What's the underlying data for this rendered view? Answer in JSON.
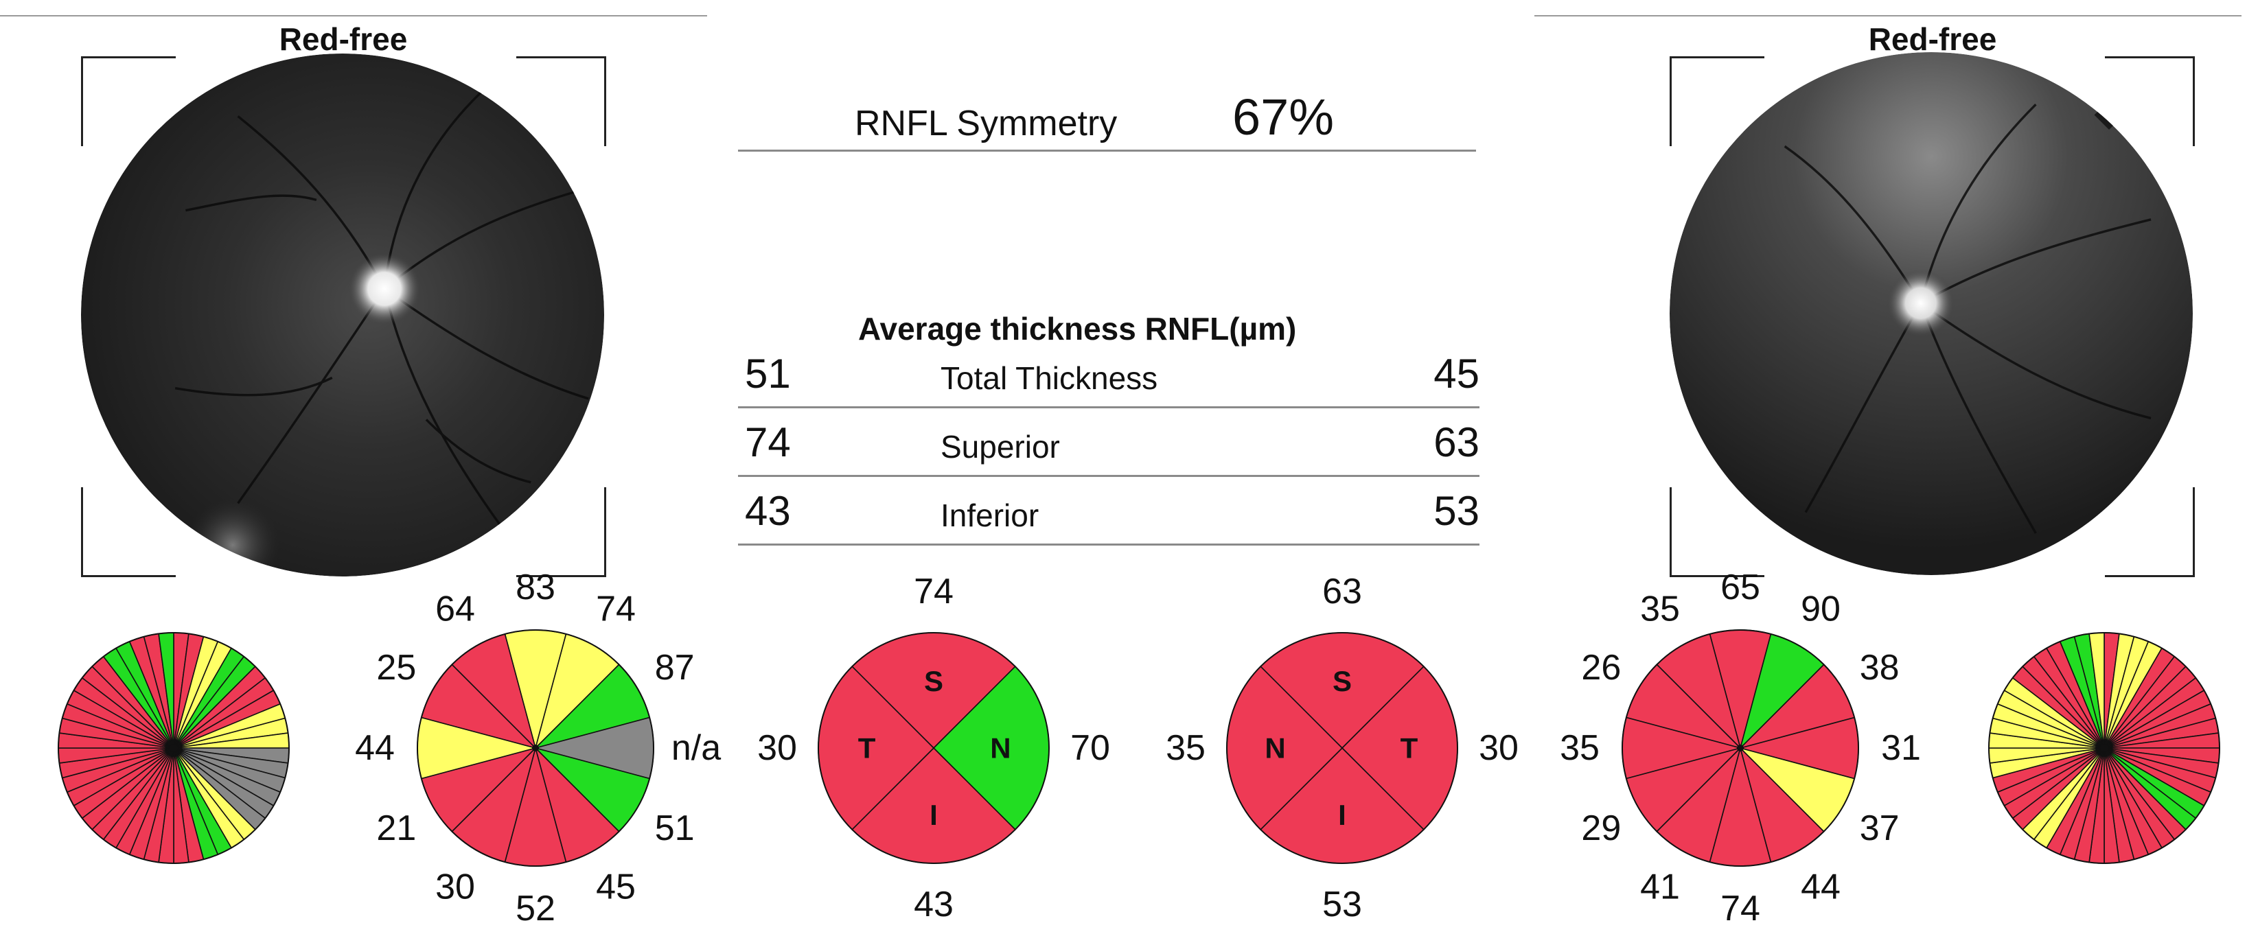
{
  "left_eye": {
    "title": "Red-free",
    "clock_values": {
      "c12": "83",
      "c1": "74",
      "c2": "87",
      "c3": "n/a",
      "c4": "51",
      "c5": "45",
      "c6": "52",
      "c7": "30",
      "c8": "21",
      "c9": "44",
      "c10": "25",
      "c11": "64"
    },
    "clock_colors": [
      "yellow",
      "yellow",
      "green",
      "gray",
      "green",
      "red",
      "red",
      "red",
      "red",
      "yellow",
      "red",
      "red"
    ],
    "quadrants": {
      "S": {
        "label": "S",
        "value": "74",
        "color": "red"
      },
      "N": {
        "label": "N",
        "value": "70",
        "color": "green"
      },
      "I": {
        "label": "I",
        "value": "43",
        "color": "red"
      },
      "T": {
        "label": "T",
        "value": "30",
        "color": "red"
      }
    }
  },
  "right_eye": {
    "title": "Red-free",
    "clock_values": {
      "c12": "65",
      "c1": "35",
      "c2": "26",
      "c3": "35",
      "c4": "29",
      "c5": "41",
      "c6": "74",
      "c7": "44",
      "c8": "37",
      "c9": "31",
      "c10": "38",
      "c11": "90"
    },
    "clock_colors": [
      "red",
      "red",
      "red",
      "red",
      "red",
      "red",
      "red",
      "red",
      "yellow",
      "red",
      "red",
      "green"
    ],
    "quadrants": {
      "S": {
        "label": "S",
        "value": "63",
        "color": "red"
      },
      "N": {
        "label": "N",
        "value": "35",
        "color": "red"
      },
      "I": {
        "label": "I",
        "value": "53",
        "color": "red"
      },
      "T": {
        "label": "T",
        "value": "30",
        "color": "red"
      }
    }
  },
  "symmetry": {
    "label": "RNFL Symmetry",
    "value": "67%"
  },
  "average_thickness": {
    "title": "Average thickness RNFL(µm)",
    "rows": [
      {
        "left": "51",
        "label": "Total Thickness",
        "right": "45"
      },
      {
        "left": "74",
        "label": "Superior",
        "right": "63"
      },
      {
        "left": "43",
        "label": "Inferior",
        "right": "53"
      }
    ]
  },
  "colors": {
    "red": "#ee3a55",
    "yellow": "#ffff66",
    "green": "#22dd22",
    "gray": "#888888"
  },
  "left_sector_colors": [
    "red",
    "red",
    "yellow",
    "yellow",
    "green",
    "green",
    "red",
    "red",
    "red",
    "yellow",
    "yellow",
    "yellow",
    "gray",
    "gray",
    "gray",
    "gray",
    "gray",
    "gray",
    "yellow",
    "yellow",
    "green",
    "green",
    "red",
    "red",
    "red",
    "red",
    "red",
    "red",
    "red",
    "red",
    "red",
    "red",
    "red",
    "red",
    "red",
    "red",
    "red",
    "red",
    "red",
    "red",
    "red",
    "red",
    "red",
    "green",
    "green",
    "red",
    "red",
    "green"
  ],
  "right_sector_colors": [
    "red",
    "yellow",
    "yellow",
    "yellow",
    "red",
    "red",
    "red",
    "red",
    "red",
    "red",
    "red",
    "red",
    "red",
    "red",
    "red",
    "red",
    "green",
    "green",
    "red",
    "red",
    "red",
    "red",
    "red",
    "red",
    "red",
    "red",
    "red",
    "red",
    "yellow",
    "yellow",
    "red",
    "red",
    "red",
    "red",
    "yellow",
    "yellow",
    "yellow",
    "yellow",
    "yellow",
    "yellow",
    "yellow",
    "red",
    "red",
    "red",
    "red",
    "green",
    "green",
    "yellow"
  ]
}
